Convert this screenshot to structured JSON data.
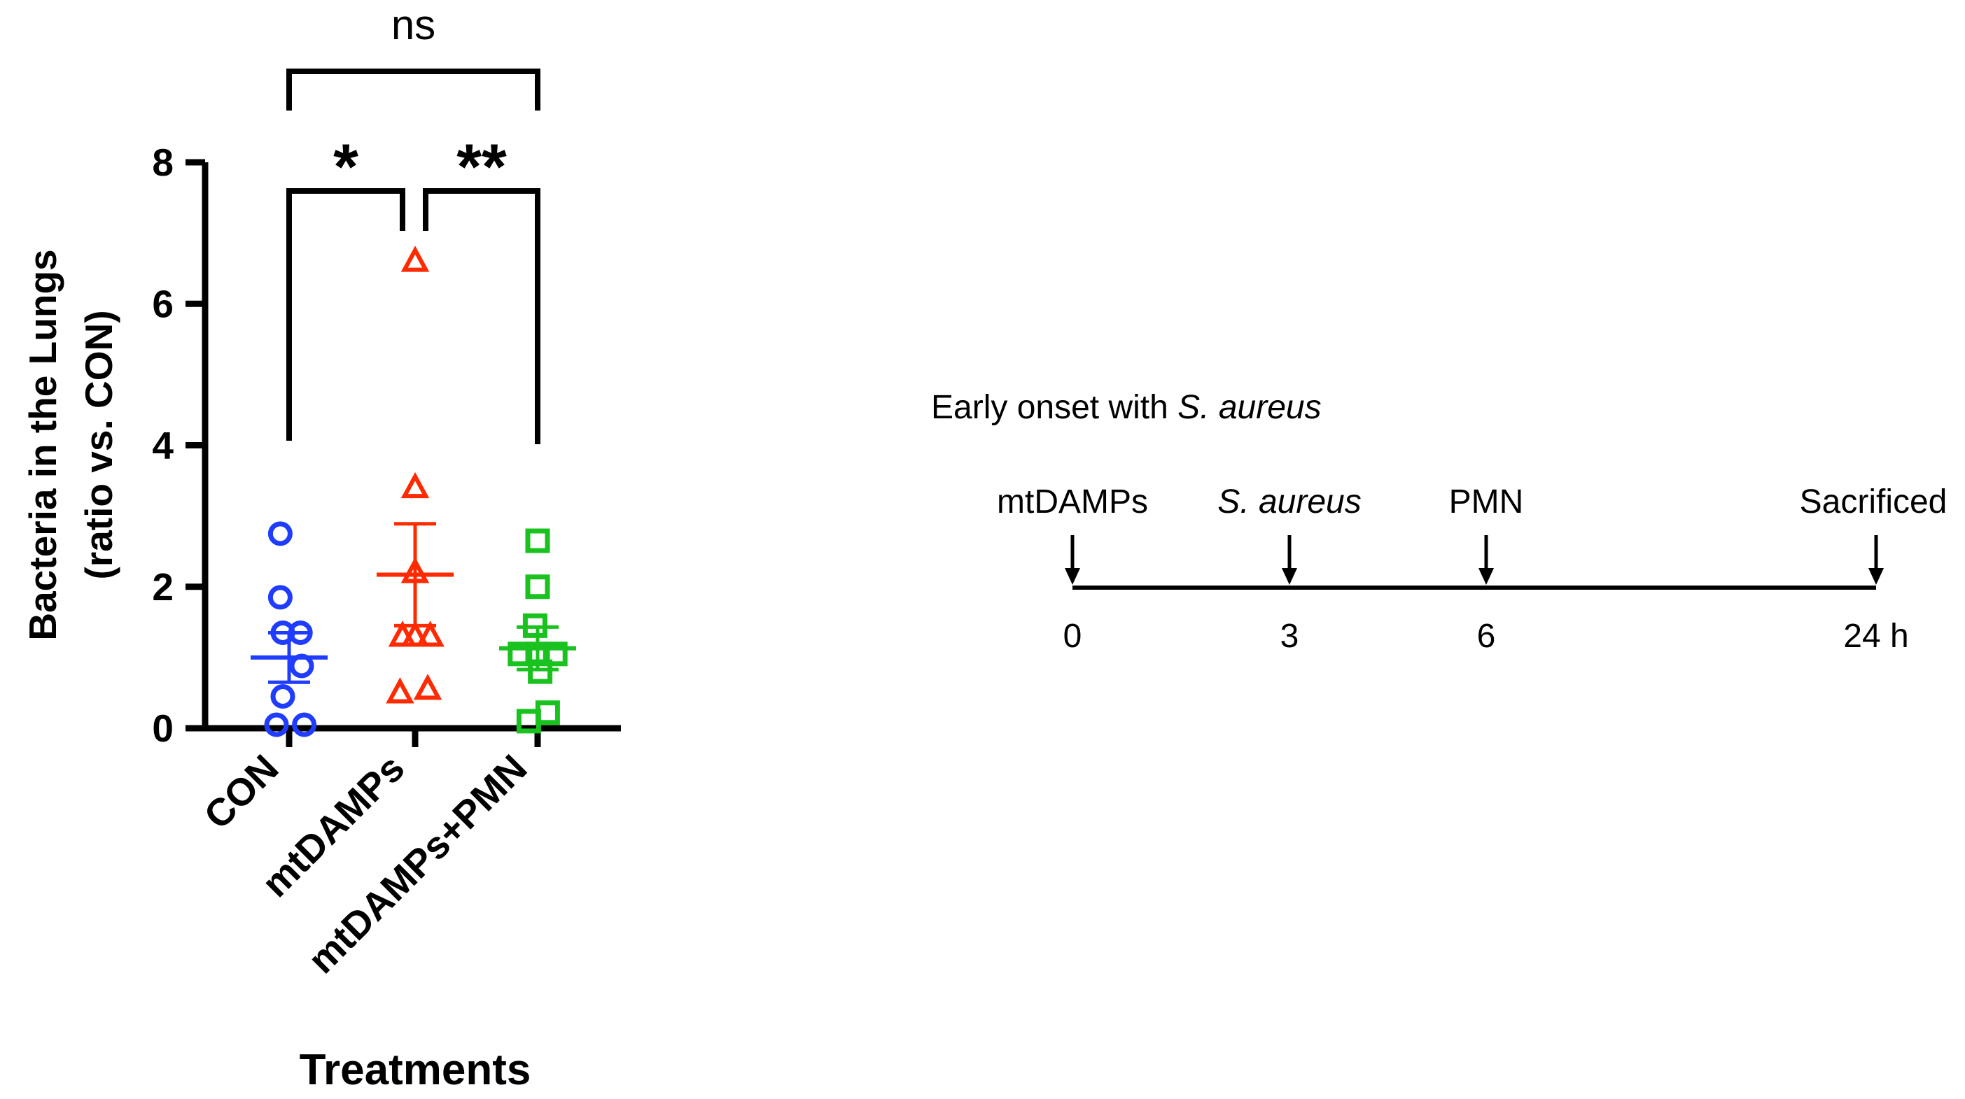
{
  "chart_data": {
    "type": "scatter",
    "subtype": "dot plot with mean and SEM",
    "xlabel": "Treatments",
    "ylabel_line1": "Bacteria in the Lungs",
    "ylabel_line2": "(ratio vs. CON)",
    "ylim": [
      0,
      8
    ],
    "yticks": [
      0,
      2,
      4,
      6,
      8
    ],
    "categories": [
      "CON",
      "mtDAMPs",
      "mtDAMPs+PMN"
    ],
    "series": [
      {
        "name": "CON",
        "color": "#1f3cff",
        "marker": "circle",
        "points": [
          [
            -0.07,
            2.75
          ],
          [
            -0.07,
            1.85
          ],
          [
            -0.05,
            1.35
          ],
          [
            0.09,
            1.35
          ],
          [
            0.1,
            0.88
          ],
          [
            -0.05,
            0.45
          ],
          [
            -0.1,
            0.05
          ],
          [
            0.12,
            0.05
          ]
        ],
        "mean": 1.0,
        "sem": 0.35
      },
      {
        "name": "mtDAMPs",
        "color": "#ff2a00",
        "marker": "triangle",
        "points": [
          [
            0.0,
            6.6
          ],
          [
            0.0,
            3.4
          ],
          [
            0.0,
            2.2
          ],
          [
            -0.1,
            1.3
          ],
          [
            0.12,
            1.3
          ],
          [
            0.0,
            1.3
          ],
          [
            -0.12,
            0.5
          ],
          [
            0.1,
            0.55
          ]
        ],
        "mean": 2.17,
        "sem": 0.72
      },
      {
        "name": "mtDAMPs+PMN",
        "color": "#19c21f",
        "marker": "square",
        "points": [
          [
            0.0,
            2.65
          ],
          [
            0.0,
            2.0
          ],
          [
            -0.02,
            1.45
          ],
          [
            -0.14,
            1.05
          ],
          [
            0.0,
            1.05
          ],
          [
            0.14,
            1.05
          ],
          [
            0.02,
            0.8
          ],
          [
            0.08,
            0.22
          ],
          [
            -0.07,
            0.1
          ]
        ],
        "mean": 1.13,
        "sem": 0.3
      }
    ],
    "significance": [
      {
        "groups": [
          "CON",
          "mtDAMPs+PMN"
        ],
        "label": "ns"
      },
      {
        "groups": [
          "CON",
          "mtDAMPs"
        ],
        "label": "*"
      },
      {
        "groups": [
          "mtDAMPs",
          "mtDAMPs+PMN"
        ],
        "label": "**"
      }
    ]
  },
  "timeline": {
    "title_plain": "Early onset with ",
    "title_italic": "S. aureus",
    "events": [
      {
        "label": "mtDAMPs",
        "italic": false,
        "time": 0,
        "tick_label": "0"
      },
      {
        "label": "S. aureus",
        "italic": true,
        "time": 3,
        "tick_label": "3"
      },
      {
        "label": "PMN",
        "italic": false,
        "time": 6,
        "tick_label": "6"
      },
      {
        "label": "Sacrificed",
        "italic": false,
        "time": 24,
        "tick_label": "24 h"
      }
    ]
  }
}
